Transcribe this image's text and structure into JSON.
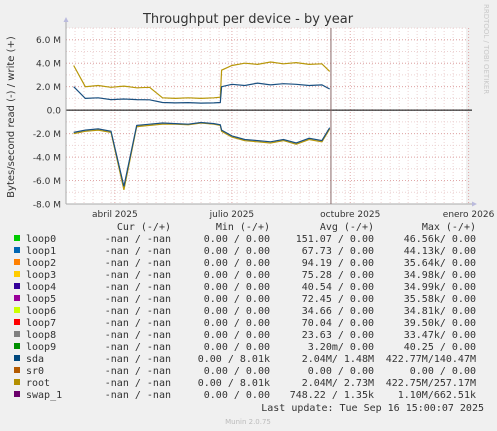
{
  "chart_data": {
    "type": "line",
    "title": "Throughput per device - by year",
    "ylabel": "Bytes/second read (-) / write (+)",
    "watermark": "RRDTOOL / TOBI OETIKER",
    "ylim": [
      -8000000,
      7000000
    ],
    "yticks": [
      {
        "value": 6000000,
        "label": "6.0 M"
      },
      {
        "value": 4000000,
        "label": "4.0 M"
      },
      {
        "value": 2000000,
        "label": "2.0 M"
      },
      {
        "value": 0,
        "label": "0.0"
      },
      {
        "value": -2000000,
        "label": "-2.0 M"
      },
      {
        "value": -4000000,
        "label": "-4.0 M"
      },
      {
        "value": -6000000,
        "label": "-6.0 M"
      },
      {
        "value": -8000000,
        "label": "-8.0 M"
      }
    ],
    "x_range": [
      "2025-02-22",
      "2025-12-30"
    ],
    "xticks": [
      {
        "date": "2025-04-01",
        "label": "abril 2025"
      },
      {
        "date": "2025-07-01",
        "label": "julio 2025"
      },
      {
        "date": "2025-10-01",
        "label": "octubre 2025"
      },
      {
        "date": "2026-01-01",
        "label": "enero 2026"
      }
    ],
    "now_marker": "2025-09-16",
    "series": [
      {
        "name": "root",
        "color": "#b8980a",
        "x": [
          "2025-02-28",
          "2025-03-09",
          "2025-03-19",
          "2025-03-29",
          "2025-04-08",
          "2025-04-18",
          "2025-04-28",
          "2025-05-08",
          "2025-05-18",
          "2025-05-28",
          "2025-06-07",
          "2025-06-17",
          "2025-06-22",
          "2025-06-23",
          "2025-07-01",
          "2025-07-11",
          "2025-07-21",
          "2025-07-31",
          "2025-08-10",
          "2025-08-20",
          "2025-08-30",
          "2025-09-09",
          "2025-09-15"
        ],
        "write": [
          3800000,
          2000000,
          2100000,
          1950000,
          2050000,
          1900000,
          1950000,
          1050000,
          1000000,
          1050000,
          1000000,
          1050000,
          1100000,
          3400000,
          3800000,
          4000000,
          3900000,
          4100000,
          3950000,
          4050000,
          3900000,
          3950000,
          3300000
        ],
        "read": [
          -2000000,
          -1800000,
          -1700000,
          -1900000,
          -6800000,
          -1400000,
          -1300000,
          -1200000,
          -1200000,
          -1250000,
          -1100000,
          -1200000,
          -1300000,
          -1800000,
          -2300000,
          -2600000,
          -2700000,
          -2800000,
          -2600000,
          -2900000,
          -2500000,
          -2700000,
          -1600000
        ]
      },
      {
        "name": "sda",
        "color": "#1a5080",
        "x": [
          "2025-02-28",
          "2025-03-09",
          "2025-03-19",
          "2025-03-29",
          "2025-04-08",
          "2025-04-18",
          "2025-04-28",
          "2025-05-08",
          "2025-05-18",
          "2025-05-28",
          "2025-06-07",
          "2025-06-17",
          "2025-06-22",
          "2025-06-23",
          "2025-07-01",
          "2025-07-11",
          "2025-07-21",
          "2025-07-31",
          "2025-08-10",
          "2025-08-20",
          "2025-08-30",
          "2025-09-09",
          "2025-09-15"
        ],
        "write": [
          2000000,
          1000000,
          1050000,
          900000,
          950000,
          900000,
          880000,
          650000,
          620000,
          640000,
          600000,
          620000,
          650000,
          2000000,
          2200000,
          2100000,
          2300000,
          2150000,
          2250000,
          2200000,
          2100000,
          2150000,
          1800000
        ],
        "read": [
          -1900000,
          -1700000,
          -1600000,
          -1800000,
          -6500000,
          -1300000,
          -1200000,
          -1100000,
          -1150000,
          -1200000,
          -1050000,
          -1150000,
          -1250000,
          -1700000,
          -2200000,
          -2500000,
          -2600000,
          -2700000,
          -2500000,
          -2800000,
          -2400000,
          -2600000,
          -1500000
        ]
      }
    ],
    "legend": {
      "headers": {
        "cur": "Cur (-/+)",
        "min": "Min (-/+)",
        "avg": "Avg (-/+)",
        "max": "Max (-/+)"
      },
      "rows": [
        {
          "name": "loop0",
          "color": "#00cc00",
          "cur": "-nan /  -nan",
          "min": "0.00 /  0.00",
          "avg": "151.07 /  0.00",
          "max": "46.56k/  0.00"
        },
        {
          "name": "loop1",
          "color": "#0066b3",
          "cur": "-nan /  -nan",
          "min": "0.00 /  0.00",
          "avg": "67.73 /  0.00",
          "max": "44.13k/  0.00"
        },
        {
          "name": "loop2",
          "color": "#ff8000",
          "cur": "-nan /  -nan",
          "min": "0.00 /  0.00",
          "avg": "94.19 /  0.00",
          "max": "35.64k/  0.00"
        },
        {
          "name": "loop3",
          "color": "#ffcc00",
          "cur": "-nan /  -nan",
          "min": "0.00 /  0.00",
          "avg": "75.28 /  0.00",
          "max": "34.98k/  0.00"
        },
        {
          "name": "loop4",
          "color": "#330099",
          "cur": "-nan /  -nan",
          "min": "0.00 /  0.00",
          "avg": "40.54 /  0.00",
          "max": "34.99k/  0.00"
        },
        {
          "name": "loop5",
          "color": "#990099",
          "cur": "-nan /  -nan",
          "min": "0.00 /  0.00",
          "avg": "72.45 /  0.00",
          "max": "35.58k/  0.00"
        },
        {
          "name": "loop6",
          "color": "#ccff00",
          "cur": "-nan /  -nan",
          "min": "0.00 /  0.00",
          "avg": "34.66 /  0.00",
          "max": "34.81k/  0.00"
        },
        {
          "name": "loop7",
          "color": "#ff0000",
          "cur": "-nan /  -nan",
          "min": "0.00 /  0.00",
          "avg": "70.04 /  0.00",
          "max": "39.50k/  0.00"
        },
        {
          "name": "loop8",
          "color": "#808080",
          "cur": "-nan /  -nan",
          "min": "0.00 /  0.00",
          "avg": "23.63 /  0.00",
          "max": "33.47k/  0.00"
        },
        {
          "name": "loop9",
          "color": "#008f00",
          "cur": "-nan /  -nan",
          "min": "0.00 /  0.00",
          "avg": "3.20m/  0.00",
          "max": "40.25 /  0.00"
        },
        {
          "name": "sda",
          "color": "#00487d",
          "cur": "-nan /  -nan",
          "min": "0.00 /  8.01k",
          "avg": "2.04M/  1.48M",
          "max": "422.77M/140.47M"
        },
        {
          "name": "sr0",
          "color": "#b35a00",
          "cur": "-nan /  -nan",
          "min": "0.00 /  0.00",
          "avg": "0.00 /  0.00",
          "max": "0.00 /  0.00"
        },
        {
          "name": "root",
          "color": "#b38f00",
          "cur": "-nan /  -nan",
          "min": "0.00 /  8.01k",
          "avg": "2.04M/  2.73M",
          "max": "422.75M/257.17M"
        },
        {
          "name": "swap_1",
          "color": "#6b006b",
          "cur": "-nan /  -nan",
          "min": "0.00 /  0.00",
          "avg": "748.22 /  1.35k",
          "max": "1.10M/662.51k"
        }
      ]
    },
    "last_update": "Last update: Tue Sep 16 15:00:07 2025",
    "footer": "Munin 2.0.75"
  }
}
